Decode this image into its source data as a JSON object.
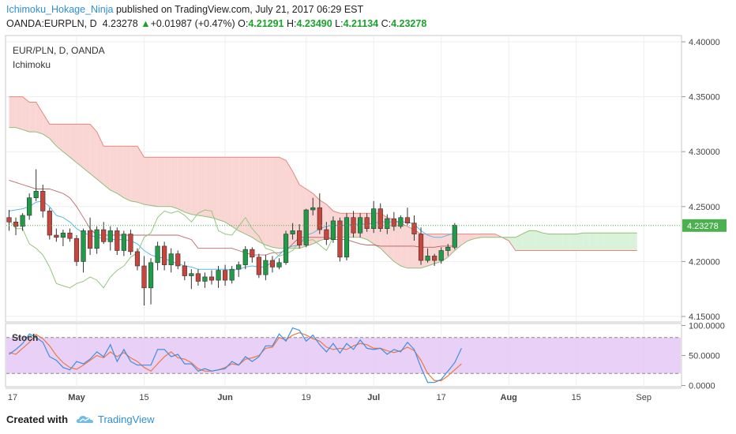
{
  "header": {
    "author": "Ichimoku_Hokage_Ninja",
    "published": "published on TradingView.com, July 21, 2017 06:29 EST"
  },
  "ohlc": {
    "symbol": "OANDA:EURPLN, D",
    "price": "4.23278",
    "arrow": "▲",
    "change": "+0.01987 (+0.47%)",
    "o_label": "O:",
    "o": "4.21291",
    "h_label": "H:",
    "h": "4.23490",
    "l_label": "L:",
    "l": "4.21134",
    "c_label": "C:",
    "c": "4.23278"
  },
  "footer": {
    "created": "Created with",
    "brand": "TradingView"
  },
  "colors": {
    "up": "#1e9c48",
    "down": "#c8453c",
    "kumo_bear": "#f9d6d3",
    "kumo_bull": "#d9f2d9",
    "stoch_band": "#e5c8f5",
    "price_tag": "#4caf50"
  },
  "chart_data": [
    {
      "type": "candlestick",
      "title": "EUR/PLN, D, OANDA",
      "indicator": "Ichimoku",
      "ylim": [
        4.145,
        4.405
      ],
      "y_ticks": [
        "4.40000",
        "4.35000",
        "4.30000",
        "4.25000",
        "4.20000",
        "4.15000"
      ],
      "y_tick_values": [
        4.4,
        4.35,
        4.3,
        4.25,
        4.2,
        4.15
      ],
      "last_price_label": "4.23278",
      "last_price": 4.23278,
      "x_ticks": [
        "17",
        "May",
        "15",
        "Jun",
        "19",
        "Jul",
        "17",
        "Aug",
        "15",
        "Sep"
      ],
      "x_tick_index": [
        -1,
        10,
        20,
        32,
        44,
        54,
        64,
        74,
        84,
        94
      ],
      "candles": [
        {
          "o": 4.24,
          "h": 4.247,
          "l": 4.228,
          "c": 4.236
        },
        {
          "o": 4.236,
          "h": 4.24,
          "l": 4.224,
          "c": 4.232
        },
        {
          "o": 4.232,
          "h": 4.244,
          "l": 4.228,
          "c": 4.242
        },
        {
          "o": 4.242,
          "h": 4.262,
          "l": 4.238,
          "c": 4.258
        },
        {
          "o": 4.258,
          "h": 4.284,
          "l": 4.255,
          "c": 4.264
        },
        {
          "o": 4.264,
          "h": 4.27,
          "l": 4.24,
          "c": 4.246
        },
        {
          "o": 4.246,
          "h": 4.249,
          "l": 4.22,
          "c": 4.224
        },
        {
          "o": 4.224,
          "h": 4.23,
          "l": 4.218,
          "c": 4.222
        },
        {
          "o": 4.222,
          "h": 4.229,
          "l": 4.214,
          "c": 4.226
        },
        {
          "o": 4.226,
          "h": 4.23,
          "l": 4.218,
          "c": 4.221
        },
        {
          "o": 4.221,
          "h": 4.224,
          "l": 4.196,
          "c": 4.2
        },
        {
          "o": 4.2,
          "h": 4.23,
          "l": 4.19,
          "c": 4.228
        },
        {
          "o": 4.228,
          "h": 4.24,
          "l": 4.206,
          "c": 4.212
        },
        {
          "o": 4.212,
          "h": 4.232,
          "l": 4.207,
          "c": 4.229
        },
        {
          "o": 4.229,
          "h": 4.236,
          "l": 4.216,
          "c": 4.218
        },
        {
          "o": 4.218,
          "h": 4.232,
          "l": 4.21,
          "c": 4.228
        },
        {
          "o": 4.228,
          "h": 4.231,
          "l": 4.206,
          "c": 4.21
        },
        {
          "o": 4.21,
          "h": 4.228,
          "l": 4.205,
          "c": 4.225
        },
        {
          "o": 4.225,
          "h": 4.229,
          "l": 4.206,
          "c": 4.209
        },
        {
          "o": 4.209,
          "h": 4.212,
          "l": 4.192,
          "c": 4.196
        },
        {
          "o": 4.196,
          "h": 4.205,
          "l": 4.16,
          "c": 4.176
        },
        {
          "o": 4.176,
          "h": 4.203,
          "l": 4.161,
          "c": 4.199
        },
        {
          "o": 4.199,
          "h": 4.218,
          "l": 4.192,
          "c": 4.214
        },
        {
          "o": 4.214,
          "h": 4.218,
          "l": 4.192,
          "c": 4.197
        },
        {
          "o": 4.197,
          "h": 4.212,
          "l": 4.19,
          "c": 4.207
        },
        {
          "o": 4.207,
          "h": 4.21,
          "l": 4.193,
          "c": 4.196
        },
        {
          "o": 4.196,
          "h": 4.2,
          "l": 4.183,
          "c": 4.187
        },
        {
          "o": 4.187,
          "h": 4.193,
          "l": 4.175,
          "c": 4.189
        },
        {
          "o": 4.189,
          "h": 4.193,
          "l": 4.178,
          "c": 4.182
        },
        {
          "o": 4.182,
          "h": 4.19,
          "l": 4.176,
          "c": 4.186
        },
        {
          "o": 4.186,
          "h": 4.192,
          "l": 4.179,
          "c": 4.183
        },
        {
          "o": 4.183,
          "h": 4.196,
          "l": 4.176,
          "c": 4.192
        },
        {
          "o": 4.192,
          "h": 4.197,
          "l": 4.178,
          "c": 4.183
        },
        {
          "o": 4.183,
          "h": 4.196,
          "l": 4.18,
          "c": 4.193
        },
        {
          "o": 4.193,
          "h": 4.2,
          "l": 4.186,
          "c": 4.197
        },
        {
          "o": 4.197,
          "h": 4.214,
          "l": 4.193,
          "c": 4.211
        },
        {
          "o": 4.211,
          "h": 4.213,
          "l": 4.199,
          "c": 4.204
        },
        {
          "o": 4.204,
          "h": 4.207,
          "l": 4.185,
          "c": 4.188
        },
        {
          "o": 4.188,
          "h": 4.206,
          "l": 4.183,
          "c": 4.201
        },
        {
          "o": 4.201,
          "h": 4.205,
          "l": 4.19,
          "c": 4.195
        },
        {
          "o": 4.195,
          "h": 4.203,
          "l": 4.193,
          "c": 4.199
        },
        {
          "o": 4.199,
          "h": 4.228,
          "l": 4.197,
          "c": 4.225
        },
        {
          "o": 4.225,
          "h": 4.235,
          "l": 4.22,
          "c": 4.228
        },
        {
          "o": 4.228,
          "h": 4.234,
          "l": 4.212,
          "c": 4.215
        },
        {
          "o": 4.215,
          "h": 4.248,
          "l": 4.213,
          "c": 4.247
        },
        {
          "o": 4.247,
          "h": 4.258,
          "l": 4.242,
          "c": 4.249
        },
        {
          "o": 4.249,
          "h": 4.262,
          "l": 4.225,
          "c": 4.229
        },
        {
          "o": 4.229,
          "h": 4.236,
          "l": 4.215,
          "c": 4.22
        },
        {
          "o": 4.22,
          "h": 4.241,
          "l": 4.217,
          "c": 4.237
        },
        {
          "o": 4.237,
          "h": 4.24,
          "l": 4.2,
          "c": 4.204
        },
        {
          "o": 4.204,
          "h": 4.244,
          "l": 4.201,
          "c": 4.24
        },
        {
          "o": 4.24,
          "h": 4.246,
          "l": 4.222,
          "c": 4.226
        },
        {
          "o": 4.226,
          "h": 4.244,
          "l": 4.222,
          "c": 4.24
        },
        {
          "o": 4.24,
          "h": 4.244,
          "l": 4.227,
          "c": 4.23
        },
        {
          "o": 4.23,
          "h": 4.255,
          "l": 4.226,
          "c": 4.248
        },
        {
          "o": 4.248,
          "h": 4.253,
          "l": 4.227,
          "c": 4.23
        },
        {
          "o": 4.23,
          "h": 4.243,
          "l": 4.225,
          "c": 4.239
        },
        {
          "o": 4.239,
          "h": 4.245,
          "l": 4.228,
          "c": 4.232
        },
        {
          "o": 4.232,
          "h": 4.242,
          "l": 4.23,
          "c": 4.24
        },
        {
          "o": 4.24,
          "h": 4.249,
          "l": 4.233,
          "c": 4.235
        },
        {
          "o": 4.235,
          "h": 4.242,
          "l": 4.219,
          "c": 4.225
        },
        {
          "o": 4.225,
          "h": 4.231,
          "l": 4.197,
          "c": 4.201
        },
        {
          "o": 4.201,
          "h": 4.212,
          "l": 4.199,
          "c": 4.205
        },
        {
          "o": 4.205,
          "h": 4.207,
          "l": 4.196,
          "c": 4.201
        },
        {
          "o": 4.201,
          "h": 4.213,
          "l": 4.198,
          "c": 4.21
        },
        {
          "o": 4.21,
          "h": 4.216,
          "l": 4.205,
          "c": 4.213
        },
        {
          "o": 4.213,
          "h": 4.235,
          "l": 4.211,
          "c": 4.233
        }
      ],
      "senkou_a": [
        4.35,
        4.35,
        4.35,
        4.345,
        4.345,
        4.335,
        4.325,
        4.325,
        4.325,
        4.325,
        4.325,
        4.325,
        4.325,
        4.318,
        4.305,
        4.305,
        4.305,
        4.305,
        4.305,
        4.305,
        4.295,
        4.295,
        4.295,
        4.295,
        4.295,
        4.295,
        4.295,
        4.295,
        4.295,
        4.295,
        4.295,
        4.295,
        4.295,
        4.295,
        4.295,
        4.295,
        4.295,
        4.295,
        4.295,
        4.295,
        4.295,
        4.292,
        4.282,
        4.27,
        4.266,
        4.262,
        4.256,
        4.252,
        4.246,
        4.244,
        4.244,
        4.244,
        4.244,
        4.244,
        4.244,
        4.244,
        4.24,
        4.238,
        4.235,
        4.232,
        4.229,
        4.225,
        4.225,
        4.225,
        4.225,
        4.225,
        4.225,
        4.225,
        4.225,
        4.225,
        4.225,
        4.225,
        4.225,
        4.222,
        4.219,
        4.21,
        4.21,
        4.21,
        4.21,
        4.21,
        4.21,
        4.21,
        4.21,
        4.21,
        4.21,
        4.21,
        4.21,
        4.21,
        4.21,
        4.21,
        4.21,
        4.21,
        4.21,
        4.21
      ],
      "senkou_b": [
        4.322,
        4.322,
        4.32,
        4.318,
        4.318,
        4.316,
        4.312,
        4.305,
        4.3,
        4.295,
        4.29,
        4.285,
        4.28,
        4.275,
        4.27,
        4.265,
        4.262,
        4.258,
        4.255,
        4.254,
        4.252,
        4.251,
        4.25,
        4.25,
        4.25,
        4.248,
        4.245,
        4.243,
        4.242,
        4.241,
        4.24,
        4.238,
        4.236,
        4.232,
        4.228,
        4.225,
        4.222,
        4.218,
        4.215,
        4.213,
        4.212,
        4.212,
        4.212,
        4.212,
        4.214,
        4.216,
        4.219,
        4.221,
        4.222,
        4.222,
        4.222,
        4.222,
        4.222,
        4.22,
        4.216,
        4.212,
        4.206,
        4.2,
        4.196,
        4.194,
        4.194,
        4.194,
        4.196,
        4.198,
        4.2,
        4.204,
        4.21,
        4.215,
        4.219,
        4.221,
        4.222,
        4.222,
        4.222,
        4.222,
        4.222,
        4.222,
        4.225,
        4.228,
        4.228,
        4.226,
        4.225,
        4.225,
        4.225,
        4.225,
        4.225,
        4.226,
        4.226,
        4.226,
        4.226,
        4.226,
        4.226,
        4.226,
        4.226,
        4.226
      ],
      "kijun": [
        4.274,
        4.272,
        4.27,
        4.268,
        4.266,
        4.266,
        4.266,
        4.264,
        4.262,
        4.258,
        4.25,
        4.24,
        4.23,
        4.224,
        4.224,
        4.224,
        4.224,
        4.224,
        4.224,
        4.224,
        4.224,
        4.224,
        4.224,
        4.224,
        4.224,
        4.224,
        4.222,
        4.22,
        4.212,
        4.212,
        4.212,
        4.212,
        4.212,
        4.212,
        4.21,
        4.208,
        4.206,
        4.206,
        4.206,
        4.208,
        4.208,
        4.21,
        4.216,
        4.222,
        4.222,
        4.222,
        4.222,
        4.222,
        4.22,
        4.22,
        4.22,
        4.218,
        4.216,
        4.215,
        4.215,
        4.214,
        4.214,
        4.214,
        4.214,
        4.214,
        4.214,
        4.213,
        4.213,
        4.213,
        4.214,
        4.214,
        4.214
      ],
      "tenkan": [
        4.246,
        4.247,
        4.248,
        4.25,
        4.254,
        4.255,
        4.25,
        4.242,
        4.24,
        4.236,
        4.23,
        4.226,
        4.224,
        4.222,
        4.221,
        4.22,
        4.22,
        4.22,
        4.219,
        4.216,
        4.21,
        4.206,
        4.204,
        4.203,
        4.2,
        4.198,
        4.196,
        4.195,
        4.193,
        4.193,
        4.193,
        4.193,
        4.193,
        4.192,
        4.193,
        4.195,
        4.196,
        4.195,
        4.195,
        4.2,
        4.206,
        4.212,
        4.214,
        4.215,
        4.224,
        4.226,
        4.23,
        4.232,
        4.233,
        4.233,
        4.233,
        4.234,
        4.234,
        4.234,
        4.235,
        4.236,
        4.236,
        4.236,
        4.236,
        4.236,
        4.234,
        4.228,
        4.224,
        4.222,
        4.222,
        4.224,
        4.226
      ],
      "chikou": [
        4.238,
        4.23,
        4.23,
        4.216,
        4.212,
        4.206,
        4.195,
        4.18,
        4.178,
        4.176,
        4.18,
        4.182,
        4.186,
        4.183,
        4.176,
        4.186,
        4.192,
        4.196,
        4.204,
        4.208,
        4.222,
        4.226,
        4.24,
        4.246,
        4.244,
        4.246,
        4.242,
        4.236,
        4.244,
        4.247,
        4.246,
        4.228,
        4.225,
        4.224,
        4.232,
        4.24,
        4.23,
        4.223,
        4.212,
        4.21,
        4.205,
        4.207,
        4.21,
        4.218,
        4.219,
        4.22,
        4.215,
        4.21,
        4.222
      ]
    },
    {
      "type": "line",
      "title": "Stoch",
      "ylim": [
        -2,
        102
      ],
      "y_ticks": [
        "100.0000",
        "50.0000",
        "0.0000"
      ],
      "y_tick_values": [
        100,
        50,
        0
      ],
      "band": [
        20,
        80
      ],
      "series": [
        {
          "values": [
            55,
            52,
            62,
            72,
            85,
            78,
            66,
            50,
            38,
            30,
            27,
            34,
            42,
            50,
            46,
            56,
            48,
            55,
            46,
            40,
            30,
            24,
            36,
            48,
            56,
            46,
            44,
            38,
            28,
            24,
            24,
            26,
            30,
            36,
            34,
            44,
            46,
            50,
            62,
            64,
            80,
            76,
            84,
            88,
            84,
            78,
            74,
            64,
            60,
            62,
            60,
            66,
            70,
            68,
            62,
            62,
            58,
            55,
            58,
            64,
            58,
            42,
            20,
            8,
            8,
            16,
            26,
            36
          ]
        },
        {
          "values": [
            52,
            60,
            70,
            86,
            80,
            72,
            48,
            42,
            30,
            26,
            40,
            36,
            44,
            56,
            48,
            68,
            40,
            60,
            40,
            34,
            34,
            34,
            60,
            60,
            48,
            52,
            36,
            36,
            24,
            28,
            24,
            26,
            28,
            40,
            34,
            48,
            40,
            48,
            66,
            66,
            86,
            74,
            96,
            92,
            74,
            84,
            68,
            56,
            70,
            54,
            70,
            60,
            76,
            62,
            60,
            62,
            52,
            60,
            56,
            72,
            60,
            30,
            5,
            5,
            10,
            24,
            38,
            62
          ]
        }
      ]
    }
  ]
}
